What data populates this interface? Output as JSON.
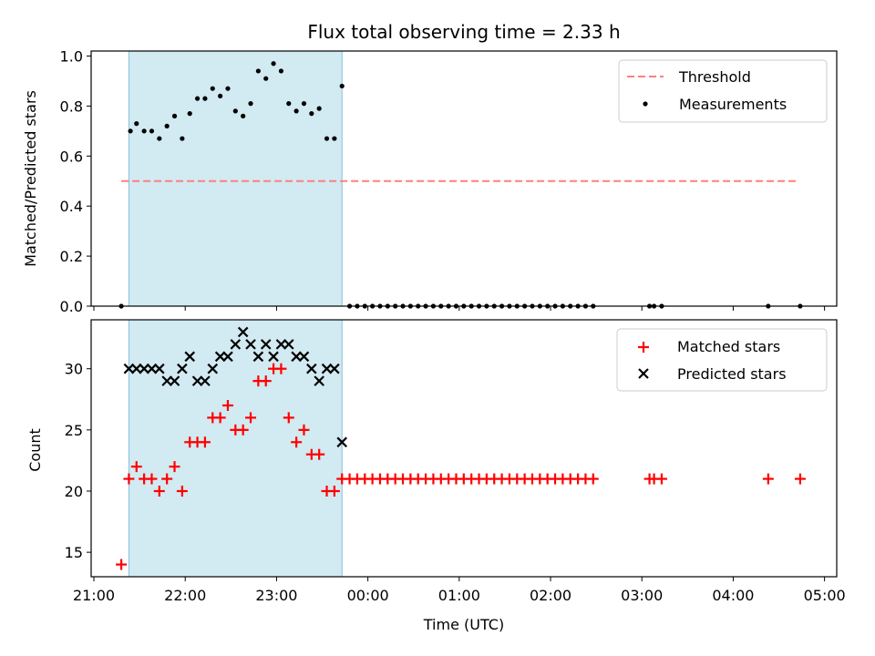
{
  "chart_data": [
    {
      "type": "scatter",
      "title": "Flux total observing time = 2.33 h",
      "ylabel": "Matched/Predicted stars",
      "xlabel": "",
      "ylim": [
        0,
        1.02
      ],
      "yticks": [
        "0.0",
        "0.2",
        "0.4",
        "0.6",
        "0.8",
        "1.0"
      ],
      "ytick_values": [
        0,
        0.2,
        0.4,
        0.6,
        0.8,
        1.0
      ],
      "grid": false,
      "legend_placement": "top-right",
      "legend": [
        "Threshold",
        "Measurements"
      ],
      "threshold": {
        "name": "Threshold",
        "y": 0.5,
        "x_start": "21:18",
        "x_end": "04:42",
        "color": "#ff7f7f"
      },
      "series": [
        {
          "name": "Measurements",
          "color": "#000000",
          "x": [
            "21:18",
            "21:24",
            "21:28",
            "21:33",
            "21:38",
            "21:43",
            "21:48",
            "21:53",
            "21:58",
            "22:03",
            "22:08",
            "22:13",
            "22:18",
            "22:23",
            "22:28",
            "22:33",
            "22:38",
            "22:43",
            "22:48",
            "22:53",
            "22:58",
            "23:03",
            "23:08",
            "23:13",
            "23:18",
            "23:23",
            "23:28",
            "23:33",
            "23:38",
            "23:43",
            "23:48",
            "23:53",
            "23:58",
            "00:03",
            "00:08",
            "00:13",
            "00:18",
            "00:23",
            "00:28",
            "00:33",
            "00:38",
            "00:43",
            "00:48",
            "00:53",
            "00:58",
            "01:03",
            "01:08",
            "01:13",
            "01:18",
            "01:23",
            "01:28",
            "01:33",
            "01:38",
            "01:43",
            "01:48",
            "01:53",
            "01:58",
            "02:03",
            "02:08",
            "02:13",
            "02:18",
            "02:23",
            "02:28",
            "03:05",
            "03:08",
            "03:13",
            "04:23",
            "04:44"
          ],
          "y": [
            0.0,
            0.7,
            0.73,
            0.7,
            0.7,
            0.67,
            0.72,
            0.76,
            0.67,
            0.77,
            0.83,
            0.83,
            0.87,
            0.84,
            0.87,
            0.78,
            0.76,
            0.81,
            0.94,
            0.91,
            0.97,
            0.94,
            0.81,
            0.78,
            0.81,
            0.77,
            0.79,
            0.67,
            0.67,
            0.88,
            0,
            0,
            0,
            0,
            0,
            0,
            0,
            0,
            0,
            0,
            0,
            0,
            0,
            0,
            0,
            0,
            0,
            0,
            0,
            0,
            0,
            0,
            0,
            0,
            0,
            0,
            0,
            0,
            0,
            0,
            0,
            0,
            0,
            0,
            0,
            0,
            0,
            0
          ]
        }
      ]
    },
    {
      "type": "scatter",
      "title": "",
      "xlabel": "Time (UTC)",
      "ylabel": "Count",
      "ylim": [
        13,
        34
      ],
      "yticks": [
        "15",
        "20",
        "25",
        "30"
      ],
      "ytick_values": [
        15,
        20,
        25,
        30
      ],
      "xticks": [
        "21:00",
        "22:00",
        "23:00",
        "00:00",
        "01:00",
        "02:00",
        "03:00",
        "04:00",
        "05:00"
      ],
      "grid": false,
      "legend_placement": "top-right",
      "legend": [
        "Matched stars",
        "Predicted stars"
      ],
      "shaded_interval": {
        "x_start": "21:23",
        "x_end": "23:43",
        "color": "#add8e6"
      },
      "series": [
        {
          "name": "Matched stars",
          "color": "#ff0000",
          "marker": "+",
          "x": [
            "21:18",
            "21:23",
            "21:28",
            "21:33",
            "21:38",
            "21:43",
            "21:48",
            "21:53",
            "21:58",
            "22:03",
            "22:08",
            "22:13",
            "22:18",
            "22:23",
            "22:28",
            "22:33",
            "22:38",
            "22:43",
            "22:48",
            "22:53",
            "22:58",
            "23:03",
            "23:08",
            "23:13",
            "23:18",
            "23:23",
            "23:28",
            "23:33",
            "23:38",
            "23:43",
            "23:48",
            "23:53",
            "23:58",
            "00:03",
            "00:08",
            "00:13",
            "00:18",
            "00:23",
            "00:28",
            "00:33",
            "00:38",
            "00:43",
            "00:48",
            "00:53",
            "00:58",
            "01:03",
            "01:08",
            "01:13",
            "01:18",
            "01:23",
            "01:28",
            "01:33",
            "01:38",
            "01:43",
            "01:48",
            "01:53",
            "01:58",
            "02:03",
            "02:08",
            "02:13",
            "02:18",
            "02:23",
            "02:28",
            "03:05",
            "03:08",
            "03:13",
            "04:23",
            "04:44"
          ],
          "y": [
            14,
            21,
            22,
            21,
            21,
            20,
            21,
            22,
            20,
            24,
            24,
            24,
            26,
            26,
            27,
            25,
            25,
            26,
            29,
            29,
            30,
            30,
            26,
            24,
            25,
            23,
            23,
            20,
            20,
            21,
            21,
            21,
            21,
            21,
            21,
            21,
            21,
            21,
            21,
            21,
            21,
            21,
            21,
            21,
            21,
            21,
            21,
            21,
            21,
            21,
            21,
            21,
            21,
            21,
            21,
            21,
            21,
            21,
            21,
            21,
            21,
            21,
            21,
            21,
            21,
            21,
            21,
            21
          ]
        },
        {
          "name": "Predicted stars",
          "color": "#000000",
          "marker": "x",
          "x": [
            "21:23",
            "21:28",
            "21:33",
            "21:38",
            "21:43",
            "21:48",
            "21:53",
            "21:58",
            "22:03",
            "22:08",
            "22:13",
            "22:18",
            "22:23",
            "22:28",
            "22:33",
            "22:38",
            "22:43",
            "22:48",
            "22:53",
            "22:58",
            "23:03",
            "23:08",
            "23:13",
            "23:18",
            "23:23",
            "23:28",
            "23:33",
            "23:38",
            "23:43"
          ],
          "y": [
            30,
            30,
            30,
            30,
            30,
            29,
            29,
            30,
            31,
            29,
            29,
            30,
            31,
            31,
            32,
            33,
            32,
            31,
            32,
            31,
            32,
            32,
            31,
            31,
            30,
            29,
            30,
            30,
            24
          ]
        }
      ]
    }
  ]
}
